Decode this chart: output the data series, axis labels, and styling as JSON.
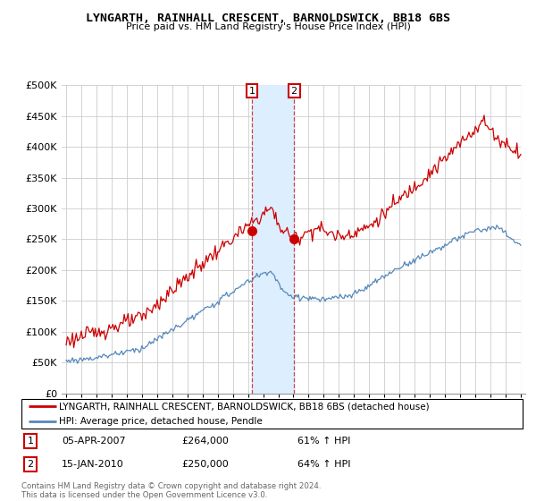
{
  "title": "LYNGARTH, RAINHALL CRESCENT, BARNOLDSWICK, BB18 6BS",
  "subtitle": "Price paid vs. HM Land Registry's House Price Index (HPI)",
  "legend_line1": "LYNGARTH, RAINHALL CRESCENT, BARNOLDSWICK, BB18 6BS (detached house)",
  "legend_line2": "HPI: Average price, detached house, Pendle",
  "footer": "Contains HM Land Registry data © Crown copyright and database right 2024.\nThis data is licensed under the Open Government Licence v3.0.",
  "transactions": [
    {
      "label": "1",
      "date": "05-APR-2007",
      "price": 264000,
      "hpi_pct": "61% ↑ HPI",
      "year": 2007.27
    },
    {
      "label": "2",
      "date": "15-JAN-2010",
      "price": 250000,
      "hpi_pct": "64% ↑ HPI",
      "year": 2010.04
    }
  ],
  "red_color": "#cc0000",
  "blue_color": "#5588bb",
  "shade_color": "#ddeeff",
  "ylim": [
    0,
    500000
  ],
  "yticks": [
    0,
    50000,
    100000,
    150000,
    200000,
    250000,
    300000,
    350000,
    400000,
    450000,
    500000
  ],
  "xlim_start": 1994.7,
  "xlim_end": 2025.3
}
